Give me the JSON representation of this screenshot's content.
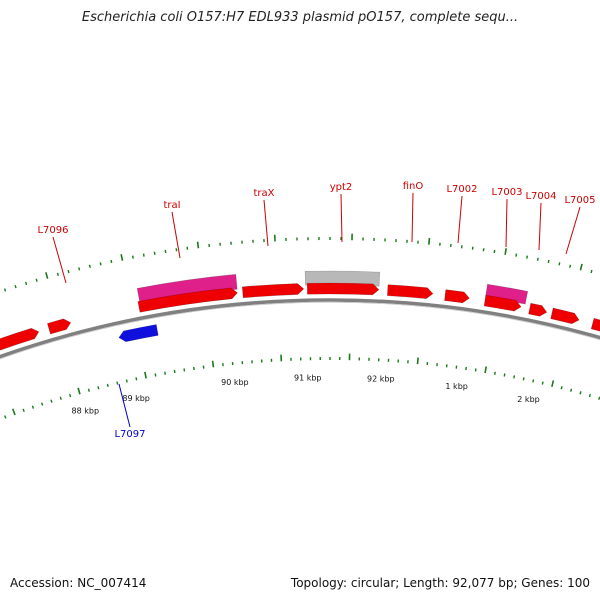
{
  "title": "Escherichia coli O157:H7 EDL933 plasmid pO157, complete sequ...",
  "footer": {
    "accession": "Accession: NC_007414",
    "summary": "Topology: circular; Length: 92,077 bp; Genes: 100"
  },
  "colors": {
    "forward_gene": "#ee0000",
    "reverse_gene": "#1010dd",
    "pink_feature": "#e0208a",
    "gray_feature": "#b8b8b8",
    "tick": "#1a7a1a",
    "backbone": "#808080"
  },
  "kbp_labels": [
    "88 kbp",
    "89 kbp",
    "90 kbp",
    "91 kbp",
    "92 kbp",
    "1 kbp",
    "2 kbp"
  ],
  "gene_labels": [
    {
      "name": "L7096",
      "color": "#cc0000"
    },
    {
      "name": "traI",
      "color": "#cc0000"
    },
    {
      "name": "traX",
      "color": "#cc0000"
    },
    {
      "name": "ypt2",
      "color": "#cc0000"
    },
    {
      "name": "finO",
      "color": "#cc0000"
    },
    {
      "name": "L7002",
      "color": "#cc0000"
    },
    {
      "name": "L7003",
      "color": "#cc0000"
    },
    {
      "name": "L7004",
      "color": "#cc0000"
    },
    {
      "name": "L7005",
      "color": "#cc0000"
    },
    {
      "name": "L7097",
      "color": "#0000cc"
    }
  ]
}
